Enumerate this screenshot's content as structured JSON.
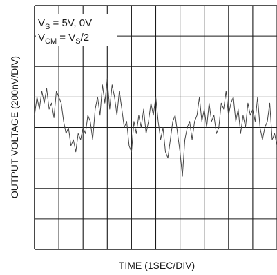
{
  "chart_data": {
    "type": "line",
    "title": "",
    "xlabel": "TIME (1SEC/DIV)",
    "ylabel": "OUTPUT VOLTAGE (200nV/DIV)",
    "annotation": {
      "line1": {
        "main": "V",
        "sub": "S",
        "rest": " = 5V, 0V"
      },
      "line2": {
        "main": "V",
        "sub": "CM",
        "mid": " = V",
        "sub2": "S",
        "rest": "/2"
      }
    },
    "x_range_s": [
      0,
      10
    ],
    "y_range_nV": [
      -1000,
      1000
    ],
    "x_divisions": 10,
    "y_divisions": 8,
    "grid": true,
    "series": [
      {
        "x_s": [
          0.0,
          0.1,
          0.2,
          0.3,
          0.4,
          0.5,
          0.6,
          0.7,
          0.8,
          0.9,
          1.0,
          1.1,
          1.2,
          1.3,
          1.4,
          1.5,
          1.6,
          1.7,
          1.8,
          1.9,
          2.0,
          2.1,
          2.2,
          2.3,
          2.4,
          2.5,
          2.6,
          2.7,
          2.8,
          2.9,
          3.0,
          3.1,
          3.2,
          3.3,
          3.4,
          3.5,
          3.6,
          3.7,
          3.8,
          3.9,
          4.0,
          4.1,
          4.2,
          4.3,
          4.4,
          4.5,
          4.6,
          4.7,
          4.8,
          4.9,
          5.0,
          5.1,
          5.2,
          5.3,
          5.4,
          5.5,
          5.6,
          5.7,
          5.8,
          5.9,
          6.0,
          6.1,
          6.2,
          6.3,
          6.4,
          6.5,
          6.6,
          6.7,
          6.8,
          6.9,
          7.0,
          7.1,
          7.2,
          7.3,
          7.4,
          7.5,
          7.6,
          7.7,
          7.8,
          7.9,
          8.0,
          8.1,
          8.2,
          8.3,
          8.4,
          8.5,
          8.6,
          8.7,
          8.8,
          8.9,
          9.0,
          9.1,
          9.2,
          9.3,
          9.4,
          9.5,
          9.6,
          9.7,
          9.8,
          9.9,
          10.0
        ],
        "y_nV": [
          100,
          250,
          150,
          300,
          200,
          320,
          150,
          200,
          80,
          300,
          250,
          200,
          50,
          -50,
          0,
          -150,
          -100,
          -200,
          -50,
          -100,
          0,
          -50,
          100,
          50,
          -100,
          150,
          250,
          100,
          350,
          200,
          400,
          150,
          350,
          250,
          100,
          300,
          150,
          0,
          50,
          -150,
          -200,
          50,
          -50,
          100,
          0,
          150,
          -50,
          50,
          200,
          100,
          250,
          50,
          -100,
          0,
          -200,
          -250,
          -100,
          50,
          100,
          -50,
          -200,
          -400,
          -100,
          0,
          50,
          -100,
          50,
          100,
          250,
          50,
          150,
          0,
          200,
          50,
          100,
          -50,
          0,
          200,
          150,
          300,
          100,
          200,
          250,
          50,
          150,
          -50,
          100,
          0,
          200,
          100,
          150,
          50,
          250,
          0,
          -100,
          0,
          50,
          200,
          -100,
          -50,
          -150
        ]
      }
    ]
  }
}
